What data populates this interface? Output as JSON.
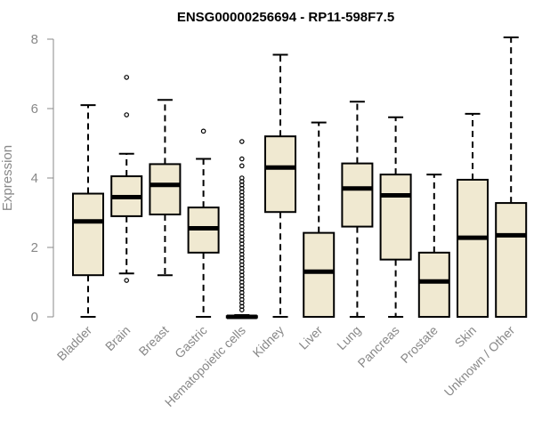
{
  "chart_data": {
    "type": "boxplot",
    "title": "ENSG00000256694 - RP11-598F7.5",
    "ylabel": "Expression",
    "xlabel": "",
    "ylim": [
      0,
      8
    ],
    "yticks": [
      0,
      2,
      4,
      6,
      8
    ],
    "grid": false,
    "legend": "none",
    "box_fill": "#f0e9d1",
    "box_stroke": "#000000",
    "axis_color": "#888888",
    "categories": [
      "Bladder",
      "Brain",
      "Breast",
      "Gastric",
      "Hematopoietic cells",
      "Kidney",
      "Liver",
      "Lung",
      "Pancreas",
      "Prostate",
      "Skin",
      "Unknown / Other"
    ],
    "boxes": [
      {
        "category": "Bladder",
        "min": 0,
        "q1": 1.2,
        "median": 2.75,
        "q3": 3.55,
        "max": 6.1,
        "outliers": []
      },
      {
        "category": "Brain",
        "min": 1.25,
        "q1": 2.9,
        "median": 3.45,
        "q3": 4.05,
        "max": 4.7,
        "outliers": [
          1.05,
          5.82,
          6.9
        ]
      },
      {
        "category": "Breast",
        "min": 1.2,
        "q1": 2.95,
        "median": 3.8,
        "q3": 4.4,
        "max": 6.25,
        "outliers": []
      },
      {
        "category": "Gastric",
        "min": 0,
        "q1": 1.85,
        "median": 2.55,
        "q3": 3.15,
        "max": 4.55,
        "outliers": [
          5.35
        ]
      },
      {
        "category": "Hematopoietic cells",
        "min": 0,
        "q1": 0,
        "median": 0,
        "q3": 0.02,
        "max": 0.05,
        "outliers": [
          0.2,
          0.3,
          0.4,
          0.5,
          0.6,
          0.7,
          0.8,
          0.9,
          1.0,
          1.1,
          1.2,
          1.3,
          1.4,
          1.5,
          1.6,
          1.7,
          1.8,
          1.9,
          2.0,
          2.1,
          2.2,
          2.3,
          2.4,
          2.5,
          2.6,
          2.7,
          2.8,
          2.9,
          3.0,
          3.1,
          3.2,
          3.3,
          3.4,
          3.5,
          3.6,
          3.7,
          3.8,
          3.9,
          4.0,
          4.35,
          4.55,
          5.05
        ]
      },
      {
        "category": "Kidney",
        "min": 0,
        "q1": 3.02,
        "median": 4.3,
        "q3": 5.2,
        "max": 7.55,
        "outliers": []
      },
      {
        "category": "Liver",
        "min": 0,
        "q1": 0,
        "median": 1.3,
        "q3": 2.42,
        "max": 5.6,
        "outliers": []
      },
      {
        "category": "Lung",
        "min": 0,
        "q1": 2.6,
        "median": 3.7,
        "q3": 4.42,
        "max": 6.2,
        "outliers": []
      },
      {
        "category": "Pancreas",
        "min": 0,
        "q1": 1.65,
        "median": 3.5,
        "q3": 4.1,
        "max": 5.75,
        "outliers": []
      },
      {
        "category": "Prostate",
        "min": 0,
        "q1": 0,
        "median": 1.02,
        "q3": 1.85,
        "max": 4.1,
        "outliers": []
      },
      {
        "category": "Skin",
        "min": 0,
        "q1": 0,
        "median": 2.28,
        "q3": 3.95,
        "max": 5.85,
        "outliers": []
      },
      {
        "category": "Unknown / Other",
        "min": 0,
        "q1": 0,
        "median": 2.35,
        "q3": 3.28,
        "max": 8.05,
        "outliers": []
      }
    ]
  }
}
